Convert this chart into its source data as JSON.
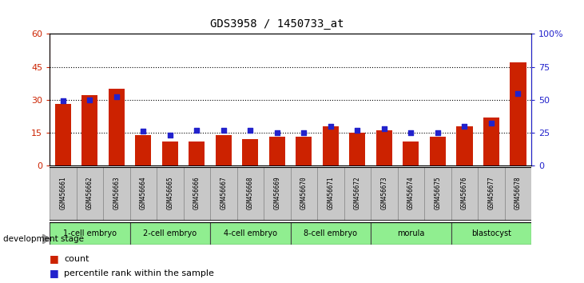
{
  "title": "GDS3958 / 1450733_at",
  "samples": [
    "GSM456661",
    "GSM456662",
    "GSM456663",
    "GSM456664",
    "GSM456665",
    "GSM456666",
    "GSM456667",
    "GSM456668",
    "GSM456669",
    "GSM456670",
    "GSM456671",
    "GSM456672",
    "GSM456673",
    "GSM456674",
    "GSM456675",
    "GSM456676",
    "GSM456677",
    "GSM456678"
  ],
  "counts": [
    28,
    32,
    35,
    14,
    11,
    11,
    14,
    12,
    13,
    13,
    18,
    15,
    16,
    11,
    13,
    18,
    22,
    47
  ],
  "percentiles": [
    49,
    50,
    52,
    26,
    23,
    27,
    27,
    27,
    25,
    25,
    30,
    27,
    28,
    25,
    25,
    30,
    32,
    55
  ],
  "stages": [
    {
      "label": "1-cell embryo",
      "start": 0,
      "end": 3
    },
    {
      "label": "2-cell embryo",
      "start": 3,
      "end": 6
    },
    {
      "label": "4-cell embryo",
      "start": 6,
      "end": 9
    },
    {
      "label": "8-cell embryo",
      "start": 9,
      "end": 12
    },
    {
      "label": "morula",
      "start": 12,
      "end": 15
    },
    {
      "label": "blastocyst",
      "start": 15,
      "end": 18
    }
  ],
  "ylim_left": [
    0,
    60
  ],
  "ylim_right": [
    0,
    100
  ],
  "yticks_left": [
    0,
    15,
    30,
    45,
    60
  ],
  "yticks_right": [
    0,
    25,
    50,
    75,
    100
  ],
  "ytick_labels_right": [
    "0",
    "25",
    "50",
    "75",
    "100%"
  ],
  "bar_color": "#CC2200",
  "dot_color": "#2222CC",
  "stage_bg_color": "#90EE90",
  "sample_bg_color": "#C8C8C8",
  "grid_color": "#000000",
  "title_color": "#000000",
  "axis_color_left": "#CC2200",
  "axis_color_right": "#2222CC",
  "bg_color": "#FFFFFF"
}
